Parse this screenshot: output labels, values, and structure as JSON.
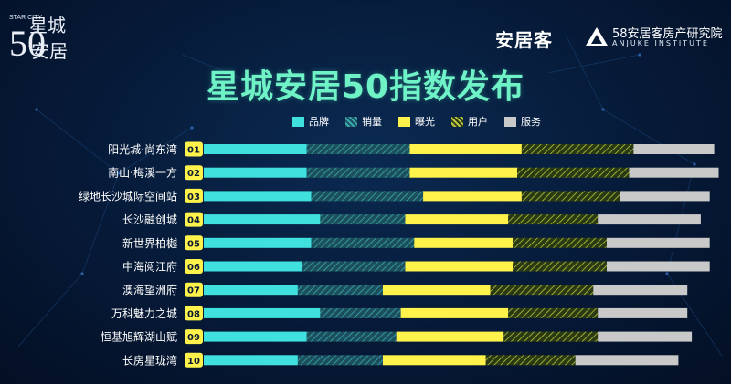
{
  "logo_left": {
    "en": "STAR CITY",
    "cn_top": "星城",
    "number": "50",
    "cn_bottom": "安居"
  },
  "brand_anjuke": "安居客",
  "brand_institute": {
    "cn": "58安居客房产研究院",
    "en": "ANJUKE INSTITUTE"
  },
  "colors": {
    "brand": "#3fe0de",
    "sales": "#1f5a66",
    "exposure": "#fff24a",
    "user": "#3a4a1c",
    "service": "#c9c9c9",
    "badge": "#fff24a"
  },
  "chart_data": {
    "type": "bar",
    "orientation": "horizontal",
    "stacked": true,
    "title": "星城安居50指数发布",
    "legend_position": "top",
    "categories": [
      "阳光城·尚东湾",
      "南山·梅溪一方",
      "绿地长沙城际空间站",
      "长沙融创城",
      "新世界柏樾",
      "中海阅江府",
      "澳海望洲府",
      "万科魅力之城",
      "恒基旭辉湖山赋",
      "长房星珑湾"
    ],
    "ranks": [
      "01",
      "02",
      "03",
      "04",
      "05",
      "06",
      "07",
      "08",
      "09",
      "10"
    ],
    "series": [
      {
        "name": "品牌",
        "values": [
          23,
          23,
          24,
          26,
          24,
          22,
          21,
          26,
          23,
          21
        ]
      },
      {
        "name": "销量",
        "values": [
          23,
          23,
          25,
          19,
          23,
          23,
          19,
          18,
          20,
          19
        ]
      },
      {
        "name": "曝光",
        "values": [
          25,
          24,
          22,
          23,
          22,
          24,
          24,
          24,
          24,
          23
        ]
      },
      {
        "name": "用户",
        "values": [
          25,
          25,
          22,
          20,
          21,
          21,
          23,
          20,
          21,
          20
        ]
      },
      {
        "name": "服务",
        "values": [
          18,
          20,
          20,
          23,
          23,
          23,
          21,
          20,
          21,
          23
        ]
      }
    ]
  }
}
